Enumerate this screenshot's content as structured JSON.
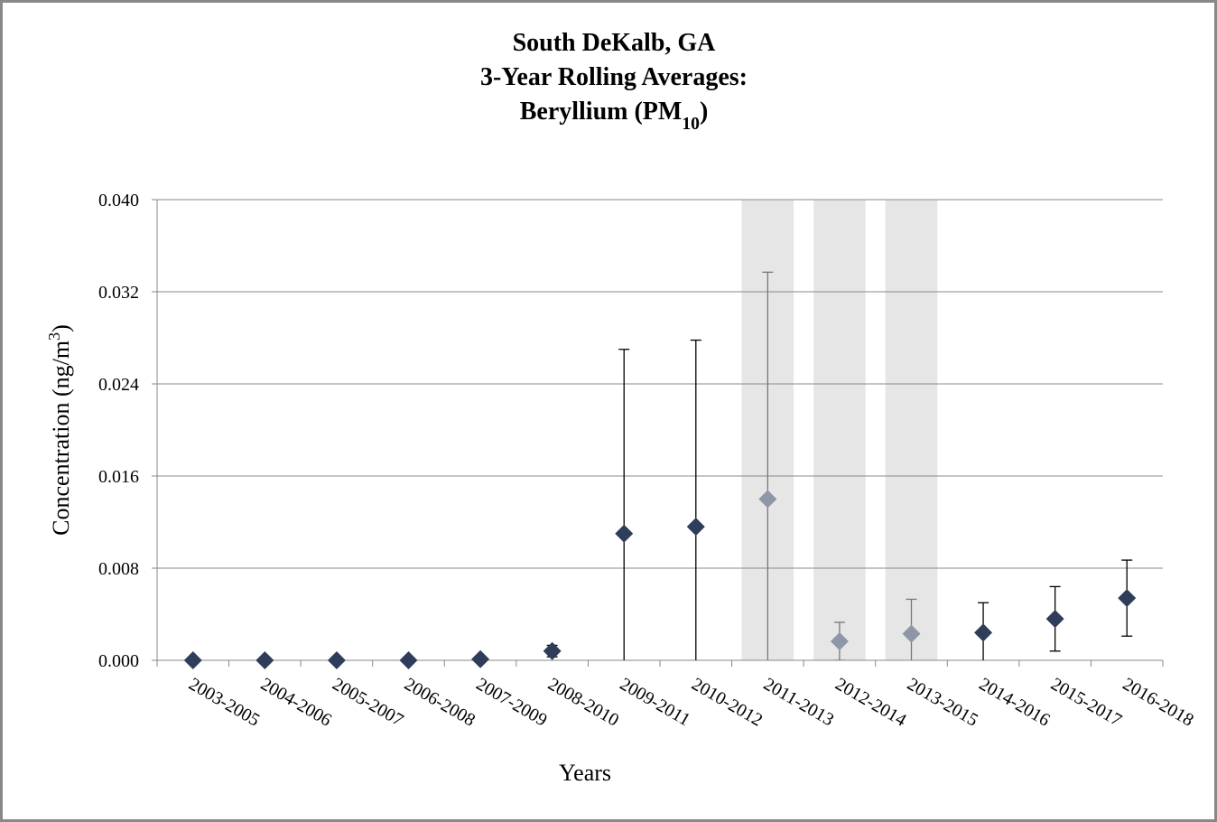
{
  "chart_data": {
    "type": "errorbar",
    "title": [
      [
        {
          "text": "South DeKalb, GA"
        }
      ],
      [
        {
          "text": "3-Year Rolling Averages:"
        }
      ],
      [
        {
          "text": "Beryllium (PM"
        },
        {
          "text": "10",
          "shift": "sub"
        },
        {
          "text": ")"
        }
      ]
    ],
    "y_label": [
      {
        "text": "Concentration (ng/m"
      },
      {
        "text": "3",
        "shift": "super"
      },
      {
        "text": ")"
      }
    ],
    "x_label": "Years",
    "categories": [
      "2003-2005",
      "2004-2006",
      "2005-2007",
      "2006-2008",
      "2007-2009",
      "2008-2010",
      "2009-2011",
      "2010-2012",
      "2011-2013",
      "2012-2014",
      "2013-2015",
      "2014-2016",
      "2015-2017",
      "2016-2018"
    ],
    "values": [
      0.0,
      0.0,
      0.0,
      0.0,
      0.0001,
      0.0008,
      0.011,
      0.0116,
      0.014,
      0.00165,
      0.0023,
      0.0024,
      0.0036,
      0.0054
    ],
    "errors": [
      null,
      null,
      null,
      null,
      null,
      0.0005,
      0.016,
      0.0162,
      0.0197,
      0.00165,
      0.003,
      0.0026,
      0.0028,
      0.0033
    ],
    "shaded": [
      false,
      false,
      false,
      false,
      false,
      false,
      false,
      false,
      true,
      true,
      true,
      false,
      false,
      false
    ],
    "color": "#2e3d5a",
    "shaded_color": "#8d97a8",
    "shade_fill": "#e6e6e6",
    "ylim": [
      0,
      0.04
    ],
    "yticks": [
      {
        "value": 0,
        "label": "0.000"
      },
      {
        "value": 0.008,
        "label": "0.008"
      },
      {
        "value": 0.016,
        "label": "0.016"
      },
      {
        "value": 0.024,
        "label": "0.024"
      },
      {
        "value": 0.032,
        "label": "0.032"
      },
      {
        "value": 0.04,
        "label": "0.040"
      }
    ],
    "grid": true
  }
}
